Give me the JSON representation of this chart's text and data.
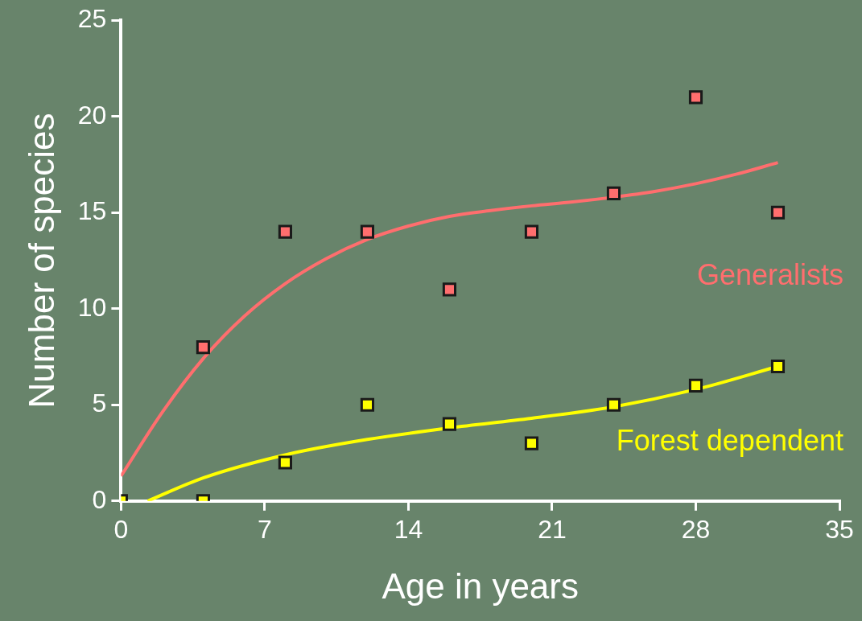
{
  "chart_data": {
    "type": "scatter",
    "xlabel": "Age in years",
    "ylabel": "Number of species",
    "xlim": [
      0,
      35
    ],
    "xticks": [
      0,
      7,
      14,
      21,
      28,
      35
    ],
    "ylim": [
      0,
      25
    ],
    "yticks": [
      0,
      5,
      10,
      15,
      20,
      25
    ],
    "grid": false,
    "legend": false,
    "marker": "square",
    "series": [
      {
        "type": "line",
        "marker": "none",
        "color": "#ff6e6e",
        "x": [
          0,
          2,
          4,
          6,
          8,
          10,
          12,
          14,
          16,
          18,
          20,
          22,
          24,
          26,
          28,
          30,
          32
        ],
        "values": [
          1.3,
          4.6,
          7.4,
          9.6,
          11.3,
          12.6,
          13.6,
          14.3,
          14.8,
          15.1,
          15.35,
          15.55,
          15.8,
          16.1,
          16.5,
          17.0,
          17.6
        ]
      },
      {
        "type": "line",
        "marker": "none",
        "color": "#ffff00",
        "x": [
          1.3,
          4,
          8,
          12,
          16,
          20,
          24,
          28,
          32
        ],
        "values": [
          0,
          1.2,
          2.4,
          3.2,
          3.8,
          4.3,
          4.9,
          5.8,
          7.0
        ]
      },
      {
        "name": "Generalists",
        "color": "#ff6e6e",
        "x": [
          4,
          8,
          12,
          16,
          20,
          24,
          28,
          32
        ],
        "values": [
          8,
          14,
          14,
          11,
          14,
          16,
          21,
          15
        ]
      },
      {
        "name": "Forest dependent",
        "color": "#ffff00",
        "x": [
          0,
          4,
          8,
          12,
          16,
          20,
          24,
          28,
          32
        ],
        "values": [
          0,
          0,
          2,
          5,
          4,
          3,
          5,
          6,
          7
        ]
      }
    ]
  }
}
